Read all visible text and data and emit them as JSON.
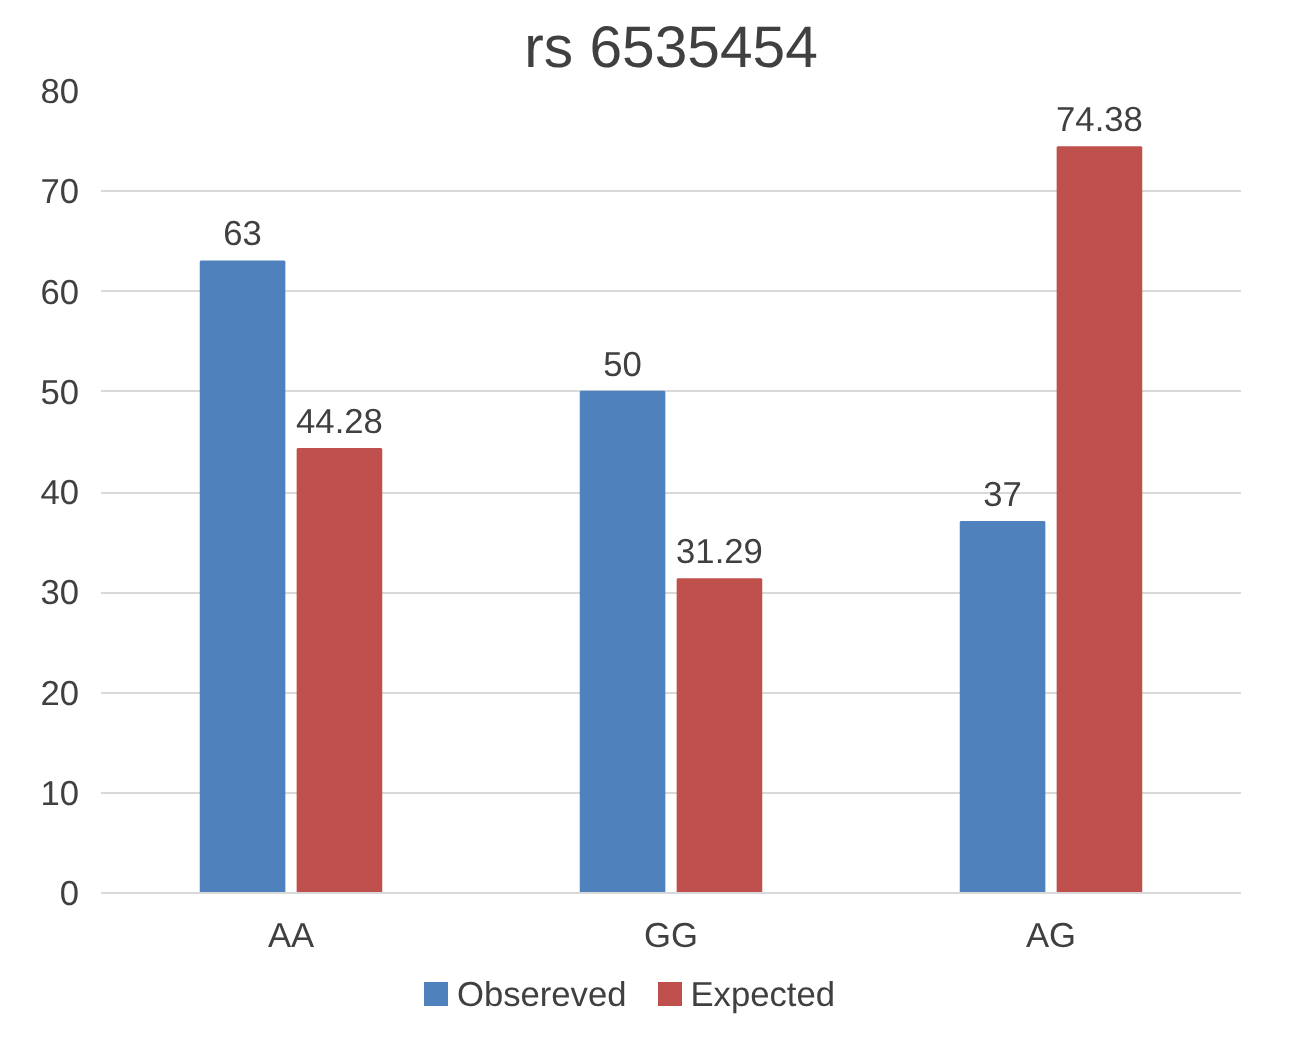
{
  "chart_data": {
    "type": "bar",
    "title": "rs 6535454",
    "categories": [
      "AA",
      "GG",
      "AG"
    ],
    "series": [
      {
        "name": "Obsereved",
        "color": "#4f81bd",
        "values": [
          63,
          50,
          37
        ]
      },
      {
        "name": "Expected",
        "color": "#c0504d",
        "values": [
          44.28,
          31.29,
          74.38
        ]
      }
    ],
    "ylim": [
      0,
      80
    ],
    "yticks": [
      0,
      10,
      20,
      30,
      40,
      50,
      60,
      70,
      80
    ],
    "grid": "y",
    "legend": "bottom",
    "data_labels": true
  }
}
